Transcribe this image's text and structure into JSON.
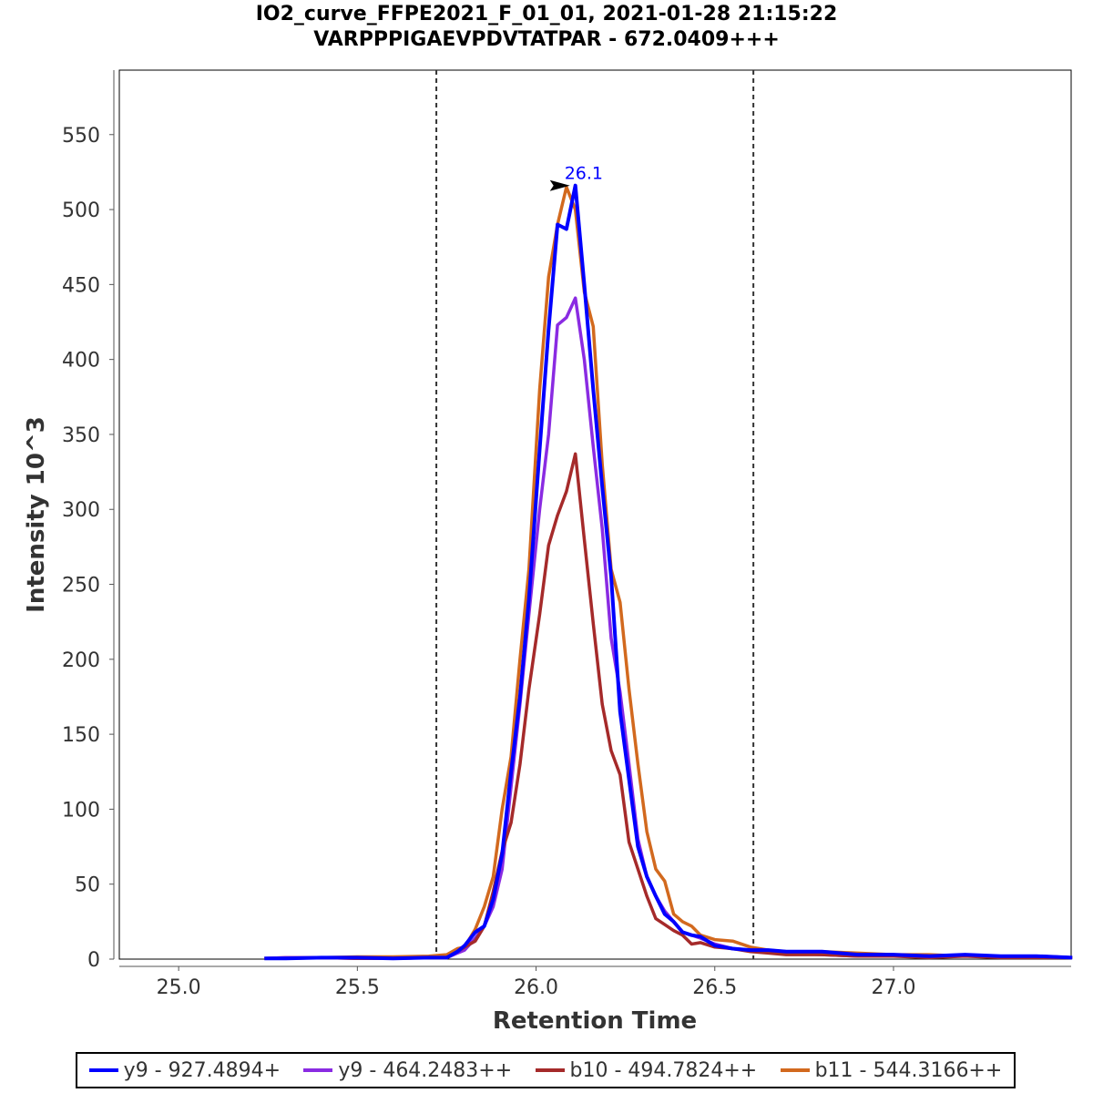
{
  "chart_data": {
    "type": "line",
    "title": [
      "IO2_curve_FFPE2021_F_01_01, 2021-01-28 21:15:22",
      "VARPPPIGAEVPDVTATPAR - 672.0409+++"
    ],
    "xlabel": "Retention Time",
    "ylabel": "Intensity 10^3",
    "xlim": [
      24.834,
      27.497
    ],
    "ylim": [
      0,
      593
    ],
    "xticks": [
      "25.0",
      "25.5",
      "26.0",
      "26.5",
      "27.0"
    ],
    "yticks": [
      "0",
      "50",
      "100",
      "150",
      "200",
      "250",
      "300",
      "350",
      "400",
      "450",
      "500",
      "550"
    ],
    "boundaries": [
      25.721,
      26.608
    ],
    "annotation": {
      "text": "26.1",
      "x": 26.11,
      "y": 516
    },
    "x": [
      25.24,
      25.3,
      25.4,
      25.5,
      25.6,
      25.7,
      25.75,
      25.78,
      25.8,
      25.83,
      25.855,
      25.88,
      25.905,
      25.93,
      25.955,
      25.98,
      26.01,
      26.035,
      26.06,
      26.085,
      26.11,
      26.135,
      26.16,
      26.185,
      26.21,
      26.235,
      26.26,
      26.285,
      26.31,
      26.335,
      26.36,
      26.385,
      26.41,
      26.435,
      26.46,
      26.5,
      26.55,
      26.6,
      26.65,
      26.7,
      26.8,
      26.9,
      27.0,
      27.1,
      27.2,
      27.3,
      27.4,
      27.5
    ],
    "series": [
      {
        "name": "y9 - 927.4894+",
        "color": "#0000ff",
        "values": [
          0.5,
          0.5,
          1,
          1,
          0.5,
          1,
          1,
          5,
          9,
          18,
          22,
          40,
          70,
          125,
          175,
          240,
          340,
          420,
          490,
          487,
          516,
          450,
          380,
          315,
          255,
          165,
          120,
          75,
          55,
          42,
          30,
          25,
          18,
          16,
          15,
          9,
          7,
          6,
          6,
          5,
          5,
          3,
          3,
          2,
          3,
          2,
          2,
          1
        ]
      },
      {
        "name": "y9 - 464.2483++",
        "color": "#8a2be2",
        "values": [
          0.5,
          1,
          1,
          0.5,
          0.5,
          1,
          1,
          4,
          6,
          14,
          22,
          35,
          60,
          115,
          170,
          230,
          300,
          350,
          423,
          428,
          441,
          400,
          342,
          287,
          214,
          178,
          130,
          80,
          55,
          42,
          32,
          25,
          18,
          16,
          14,
          10,
          7,
          6,
          5,
          4,
          3,
          2,
          3,
          2,
          2,
          2,
          2,
          1
        ]
      },
      {
        "name": "b10 - 494.7824++",
        "color": "#a52a2a",
        "values": [
          0.5,
          0.5,
          1,
          0.5,
          0.5,
          1,
          1,
          5,
          8,
          12,
          22,
          45,
          72,
          91,
          130,
          180,
          230,
          276,
          296,
          312,
          337,
          280,
          224,
          170,
          139,
          123,
          78,
          60,
          42,
          27,
          23,
          19,
          16,
          10,
          11,
          8,
          7,
          5,
          4,
          3,
          3,
          2,
          2,
          1,
          2,
          1,
          1,
          1
        ]
      },
      {
        "name": "b11 - 544.3166++",
        "color": "#d2691e",
        "values": [
          0.5,
          1,
          1,
          1.5,
          1.5,
          2,
          3,
          7,
          8,
          20,
          35,
          55,
          100,
          135,
          200,
          260,
          380,
          455,
          490,
          515,
          500,
          445,
          422,
          330,
          260,
          238,
          180,
          130,
          85,
          60,
          52,
          30,
          25,
          22,
          16,
          13,
          12,
          8,
          6,
          5,
          5,
          4,
          3,
          3,
          2,
          2,
          2,
          1
        ]
      }
    ]
  }
}
